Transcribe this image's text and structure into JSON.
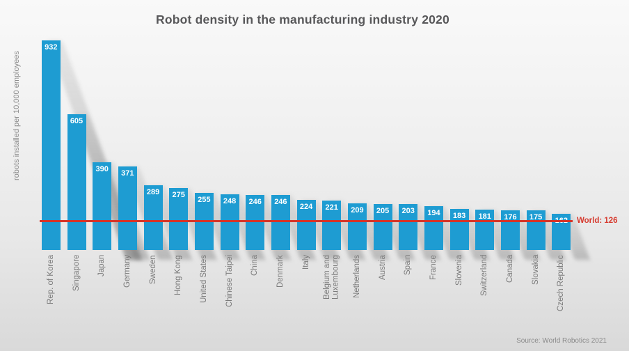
{
  "title": "Robot density in the manufacturing industry 2020",
  "ylabel": "robots installed per 10,000 employees",
  "source": "Source: World Robotics 2021",
  "world_line": {
    "label": "World: 126",
    "value": 126
  },
  "colors": {
    "bar": "#1e9cd2",
    "value_label": "#ffffff",
    "line": "#d63428",
    "line_text": "#d63a2e",
    "title": "#58585a",
    "axis_text": "#8a8a8a",
    "axis_text_dark": "#7a7a7a"
  },
  "chart_data": {
    "type": "bar",
    "title": "Robot density in the manufacturing industry 2020",
    "xlabel": "",
    "ylabel": "robots installed per 10,000 employees",
    "ylim": [
      0,
      932
    ],
    "grid": false,
    "legend": "none",
    "categories": [
      "Rep. of Korea",
      "Singapore",
      "Japan",
      "Germany",
      "Sweden",
      "Hong Kong",
      "United States",
      "Chinese Taipei",
      "China",
      "Denmark",
      "Italy",
      "Belgium and Luxembourg",
      "Netherlands",
      "Austria",
      "Spain",
      "France",
      "Slovenia",
      "Switzerland",
      "Canada",
      "Slovakia",
      "Czech Republic"
    ],
    "values": [
      932,
      605,
      390,
      371,
      289,
      275,
      255,
      248,
      246,
      246,
      224,
      221,
      209,
      205,
      203,
      194,
      183,
      181,
      176,
      175,
      162
    ],
    "annotations": [
      {
        "type": "hline",
        "value": 126,
        "label": "World: 126"
      }
    ]
  }
}
